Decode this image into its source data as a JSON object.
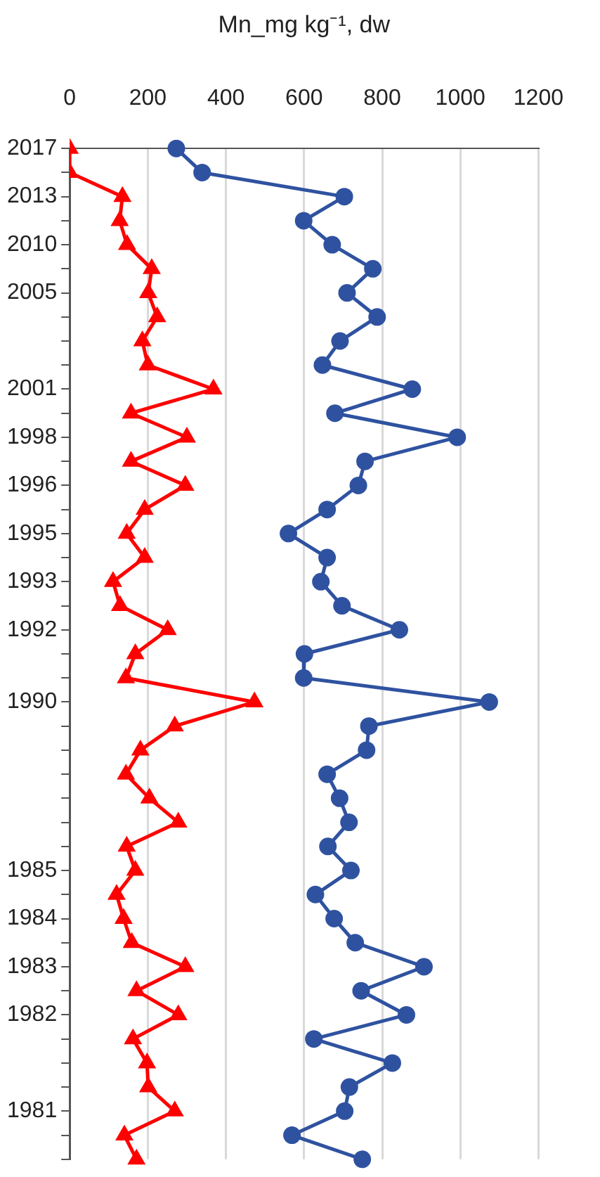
{
  "chart_data": {
    "type": "line",
    "xlabel": "Mn_mg kg⁻¹, dw",
    "categories": [
      "2017",
      null,
      "2013",
      null,
      "2010",
      null,
      "2005",
      null,
      null,
      null,
      "2001",
      null,
      "1998",
      null,
      "1996",
      null,
      "1995",
      null,
      "1993",
      null,
      "1992",
      null,
      null,
      "1990",
      null,
      null,
      null,
      null,
      null,
      null,
      "1985",
      null,
      "1984",
      null,
      "1983",
      null,
      "1982",
      null,
      null,
      null,
      "1981",
      null,
      null
    ],
    "series": [
      {
        "color": "#ff0000",
        "marker": "triangle",
        "values": [
          0,
          0,
          135,
          128,
          147,
          210,
          201,
          224,
          186,
          200,
          368,
          157,
          300,
          157,
          296,
          192,
          146,
          192,
          111,
          129,
          251,
          168,
          144,
          473,
          269,
          181,
          144,
          204,
          278,
          146,
          168,
          120,
          138,
          159,
          296,
          171,
          278,
          162,
          198,
          201,
          269,
          140,
          171
        ]
      },
      {
        "color": "#2f52a0",
        "marker": "circle",
        "values": [
          273,
          339,
          703,
          599,
          672,
          776,
          710,
          787,
          692,
          647,
          877,
          679,
          992,
          756,
          739,
          659,
          560,
          659,
          643,
          697,
          844,
          601,
          599,
          1074,
          766,
          760,
          659,
          691,
          715,
          661,
          720,
          629,
          677,
          731,
          907,
          746,
          862,
          625,
          826,
          716,
          704,
          569,
          749
        ]
      }
    ],
    "xlim": [
      0,
      1200
    ],
    "xticks": [
      0,
      200,
      400,
      600,
      800,
      1000,
      1200
    ],
    "grid": "x",
    "legend": false,
    "orientation": "horizontal"
  }
}
